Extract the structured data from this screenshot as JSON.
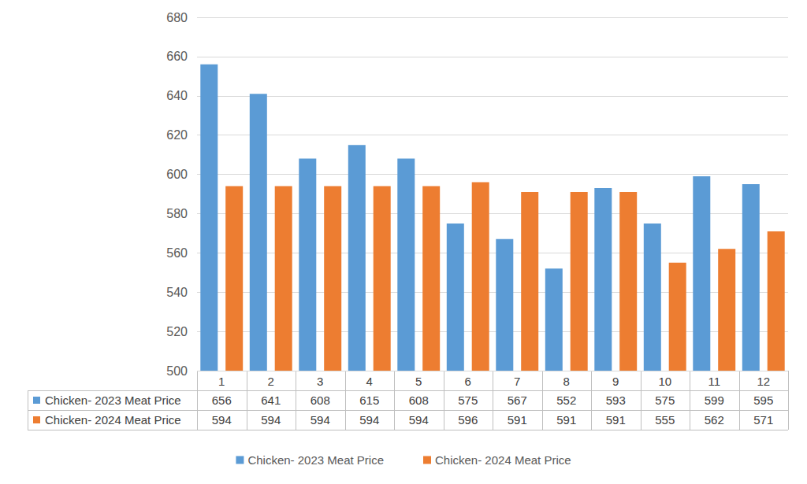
{
  "chart_data": {
    "type": "bar",
    "categories": [
      "1",
      "2",
      "3",
      "4",
      "5",
      "6",
      "7",
      "8",
      "9",
      "10",
      "11",
      "12"
    ],
    "series": [
      {
        "name": "Chicken- 2023 Meat Price",
        "color": "#5b9bd5",
        "values": [
          656,
          641,
          608,
          615,
          608,
          575,
          567,
          552,
          593,
          575,
          599,
          595
        ]
      },
      {
        "name": "Chicken- 2024 Meat Price",
        "color": "#ed7d31",
        "values": [
          594,
          594,
          594,
          594,
          594,
          596,
          591,
          591,
          591,
          555,
          562,
          571
        ]
      }
    ],
    "ylim": [
      500,
      680
    ],
    "yticks": [
      500,
      520,
      540,
      560,
      580,
      600,
      620,
      640,
      660,
      680
    ],
    "grid": true,
    "legend": "bottom"
  }
}
